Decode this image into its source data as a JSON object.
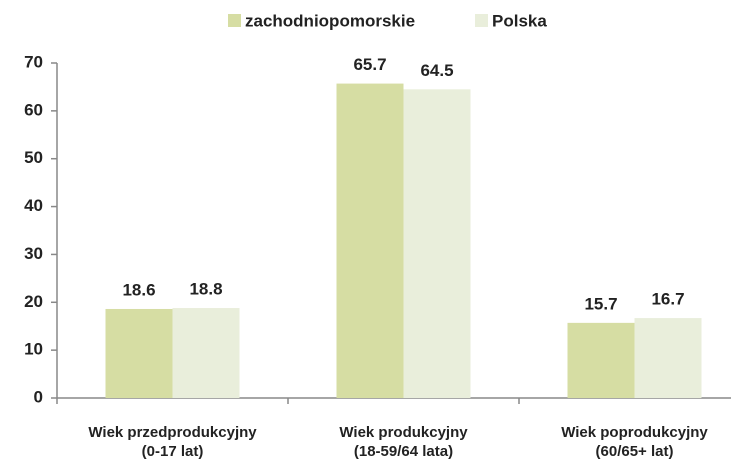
{
  "chart_data": {
    "type": "bar",
    "categories": [
      [
        "Wiek przedprodukcyjny",
        "(0-17 lat)"
      ],
      [
        "Wiek produkcyjny",
        "(18-59/64 lata)"
      ],
      [
        "Wiek poprodukcyjny",
        "(60/65+ lat)"
      ]
    ],
    "series": [
      {
        "name": "zachodniopomorskie",
        "color": "#d6dda3",
        "values": [
          18.6,
          65.7,
          15.7
        ]
      },
      {
        "name": "Polska",
        "color": "#e9eedb",
        "values": [
          18.8,
          64.5,
          16.7
        ]
      }
    ],
    "ylim": [
      0,
      70
    ],
    "yticks": [
      0,
      10,
      20,
      30,
      40,
      50,
      60,
      70
    ],
    "legend": "top"
  }
}
